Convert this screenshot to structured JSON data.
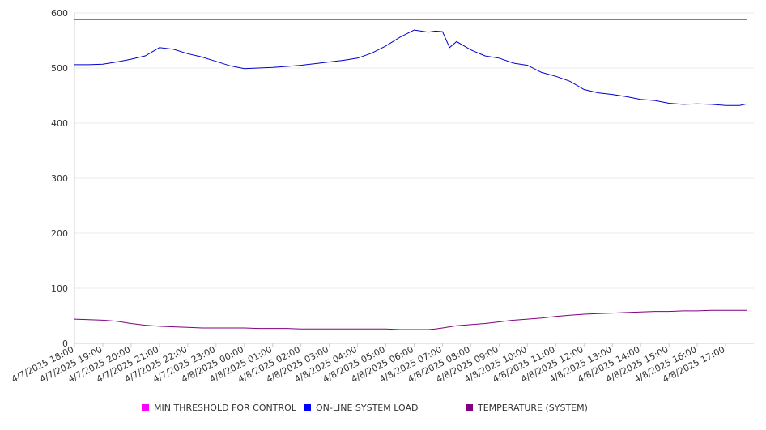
{
  "chart_data": {
    "type": "line",
    "title": "",
    "xlabel": "",
    "ylabel": "",
    "ylim": [
      0,
      600
    ],
    "y_ticks": [
      "0",
      "100",
      "200",
      "300",
      "400",
      "500",
      "600"
    ],
    "x_tick_labels": [
      "4/7/2025 18:00",
      "4/7/2025 19:00",
      "4/7/2025 20:00",
      "4/7/2025 21:00",
      "4/7/2025 22:00",
      "4/7/2025 23:00",
      "4/8/2025 00:00",
      "4/8/2025 01:00",
      "4/8/2025 02:00",
      "4/8/2025 03:00",
      "4/8/2025 04:00",
      "4/8/2025 05:00",
      "4/8/2025 06:00",
      "4/8/2025 07:00",
      "4/8/2025 08:00",
      "4/8/2025 09:00",
      "4/8/2025 10:00",
      "4/8/2025 11:00",
      "4/8/2025 12:00",
      "4/8/2025 13:00",
      "4/8/2025 14:00",
      "4/8/2025 15:00",
      "4/8/2025 16:00",
      "4/8/2025 17:00"
    ],
    "x": [
      "4/7/2025 18:00",
      "4/7/2025 18:30",
      "4/7/2025 19:00",
      "4/7/2025 19:30",
      "4/7/2025 20:00",
      "4/7/2025 20:30",
      "4/7/2025 21:00",
      "4/7/2025 21:30",
      "4/7/2025 22:00",
      "4/7/2025 22:30",
      "4/7/2025 23:00",
      "4/7/2025 23:30",
      "4/8/2025 00:00",
      "4/8/2025 00:30",
      "4/8/2025 01:00",
      "4/8/2025 01:30",
      "4/8/2025 02:00",
      "4/8/2025 02:30",
      "4/8/2025 03:00",
      "4/8/2025 03:30",
      "4/8/2025 04:00",
      "4/8/2025 04:30",
      "4/8/2025 05:00",
      "4/8/2025 05:30",
      "4/8/2025 06:00",
      "4/8/2025 06:15",
      "4/8/2025 06:30",
      "4/8/2025 06:45",
      "4/8/2025 07:00",
      "4/8/2025 07:15",
      "4/8/2025 07:30",
      "4/8/2025 08:00",
      "4/8/2025 08:30",
      "4/8/2025 09:00",
      "4/8/2025 09:30",
      "4/8/2025 10:00",
      "4/8/2025 10:30",
      "4/8/2025 11:00",
      "4/8/2025 11:30",
      "4/8/2025 12:00",
      "4/8/2025 12:30",
      "4/8/2025 13:00",
      "4/8/2025 13:30",
      "4/8/2025 14:00",
      "4/8/2025 14:30",
      "4/8/2025 15:00",
      "4/8/2025 15:30",
      "4/8/2025 16:00",
      "4/8/2025 16:30",
      "4/8/2025 17:00",
      "4/8/2025 17:30",
      "4/8/2025 17:45"
    ],
    "series": [
      {
        "name": "MIN THRESHOLD FOR CONTROL",
        "color": "#cc00cc",
        "values": [
          588,
          588,
          588,
          588,
          588,
          588,
          588,
          588,
          588,
          588,
          588,
          588,
          588,
          588,
          588,
          588,
          588,
          588,
          588,
          588,
          588,
          588,
          588,
          588,
          588,
          588,
          588,
          588,
          588,
          588,
          588,
          588,
          588,
          588,
          588,
          588,
          588,
          588,
          588,
          588,
          588,
          588,
          588,
          588,
          588,
          588,
          588,
          588,
          588,
          588,
          588,
          588
        ]
      },
      {
        "name": "ON-LINE SYSTEM LOAD",
        "color": "#0000cc",
        "values": [
          506,
          506,
          507,
          511,
          516,
          522,
          537,
          534,
          526,
          520,
          512,
          504,
          499,
          500,
          501,
          503,
          505,
          508,
          511,
          514,
          518,
          527,
          540,
          556,
          569,
          567,
          565,
          567,
          566,
          537,
          548,
          533,
          522,
          518,
          509,
          505,
          492,
          485,
          476,
          461,
          455,
          452,
          448,
          443,
          441,
          436,
          434,
          435,
          434,
          432,
          432,
          435
        ]
      },
      {
        "name": "TEMPERATURE (SYSTEM)",
        "color": "#800080",
        "values": [
          44,
          43,
          42,
          40,
          36,
          33,
          31,
          30,
          29,
          28,
          28,
          28,
          28,
          27,
          27,
          27,
          26,
          26,
          26,
          26,
          26,
          26,
          26,
          25,
          25,
          25,
          25,
          26,
          28,
          30,
          32,
          34,
          36,
          39,
          42,
          44,
          46,
          49,
          51,
          53,
          54,
          55,
          56,
          57,
          58,
          58,
          59,
          59,
          60,
          60,
          60,
          60
        ]
      }
    ],
    "grid": true,
    "legend": "bottom"
  }
}
